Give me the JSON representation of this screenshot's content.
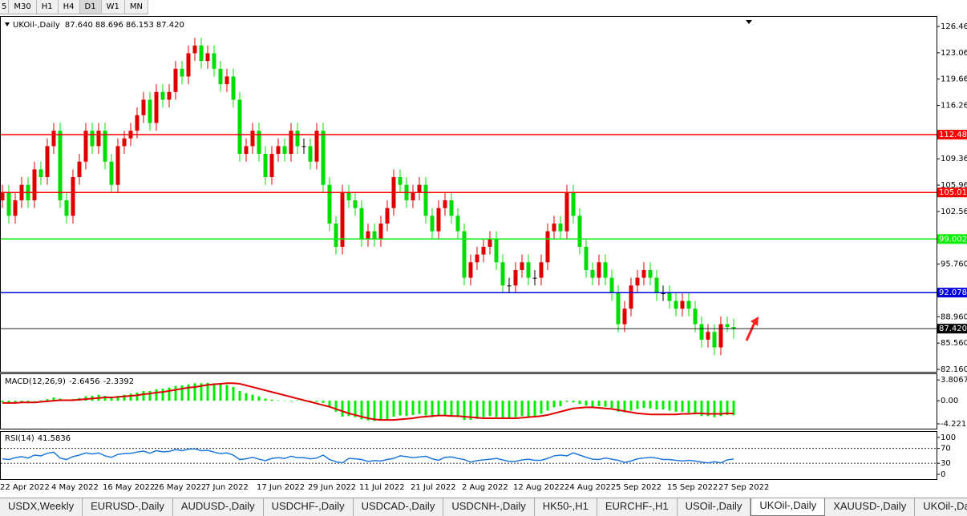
{
  "toolbar": [
    "5",
    "M30",
    "H1",
    "H4",
    "D1",
    "W1",
    "MN"
  ],
  "tabs": [
    "USDX,Weekly",
    "EURUSD-,Daily",
    "AUDUSD-,Daily",
    "USDCHF-,Daily",
    "USDCAD-,Daily",
    "USDCNH-,Daily",
    "HK50-,H1",
    "EURCHF-,H1",
    "USOil-,Daily",
    "UKOil-,Daily",
    "XAUUSD-,Daily",
    "UKOil-,Da"
  ],
  "active_tab": 9,
  "chart_data": [
    {
      "type": "candlestick",
      "title": "UKOil-,Daily",
      "ohlc_labels": [
        "87.640",
        "88.696",
        "86.153",
        "87.420"
      ],
      "categories": [
        "22 Apr 2022",
        null,
        null,
        null,
        null,
        null,
        null,
        null,
        "4 May 2022",
        null,
        null,
        null,
        null,
        null,
        null,
        null,
        "16 May 2022",
        null,
        null,
        null,
        null,
        null,
        null,
        null,
        "26 May 2022",
        null,
        null,
        null,
        null,
        null,
        null,
        null,
        "7 Jun 2022",
        null,
        null,
        null,
        null,
        null,
        null,
        null,
        "17 Jun 2022",
        null,
        null,
        null,
        null,
        null,
        null,
        null,
        "29 Jun 2022",
        null,
        null,
        null,
        null,
        null,
        null,
        null,
        "11 Jul 2022",
        null,
        null,
        null,
        null,
        null,
        null,
        null,
        "21 Jul 2022",
        null,
        null,
        null,
        null,
        null,
        null,
        null,
        "2 Aug 2022",
        null,
        null,
        null,
        null,
        null,
        null,
        null,
        "12 Aug 2022",
        null,
        null,
        null,
        null,
        null,
        null,
        null,
        "24 Aug 2022",
        null,
        null,
        null,
        null,
        null,
        null,
        null,
        "5 Sep 2022",
        null,
        null,
        null,
        null,
        null,
        null,
        null,
        "15 Sep 2022",
        null,
        null,
        null,
        null,
        null,
        null,
        null,
        "27 Sep 2022",
        null,
        null
      ],
      "open": [
        104,
        105,
        102,
        104,
        106,
        104,
        108,
        107,
        111,
        113,
        104,
        102,
        107,
        109,
        113,
        111,
        113,
        109,
        106,
        111,
        112,
        113,
        115,
        117,
        114,
        118,
        117,
        118,
        121,
        120,
        123,
        124,
        122,
        123,
        121,
        119,
        120,
        117,
        110,
        111,
        113,
        110,
        107,
        110,
        111,
        110,
        113,
        111,
        111,
        109,
        113,
        106,
        101,
        98,
        105,
        104,
        103,
        99,
        100,
        99,
        101,
        103,
        107,
        106,
        104,
        105,
        106,
        102,
        100,
        103,
        104,
        102,
        100,
        94,
        96,
        97,
        98,
        99,
        96,
        93,
        93,
        95,
        96,
        94,
        94,
        96,
        100,
        101,
        100,
        105,
        102,
        98,
        95,
        94,
        96,
        94,
        92,
        88,
        90,
        93,
        94,
        95,
        94,
        92,
        92,
        91,
        90,
        91,
        90,
        88,
        86,
        87,
        85,
        88,
        87.64
      ],
      "high": [
        106,
        106,
        105,
        107,
        107,
        109,
        109,
        112,
        114,
        114,
        105,
        108,
        110,
        114,
        114,
        114,
        114,
        110,
        112,
        113,
        114,
        116,
        118,
        118,
        119,
        119,
        119,
        122,
        122,
        124,
        125,
        125,
        124,
        124,
        122,
        121,
        121,
        118,
        112,
        114,
        114,
        111,
        111,
        112,
        112,
        114,
        114,
        112,
        112,
        114,
        114,
        107,
        102,
        106,
        106,
        105,
        104,
        101,
        101,
        102,
        104,
        108,
        108,
        107,
        106,
        107,
        107,
        103,
        104,
        105,
        105,
        103,
        101,
        97,
        98,
        99,
        100,
        100,
        97,
        94,
        96,
        97,
        97,
        95,
        97,
        101,
        102,
        102,
        106,
        106,
        103,
        99,
        96,
        97,
        97,
        95,
        93,
        91,
        94,
        95,
        96,
        96,
        95,
        93,
        93,
        92,
        92,
        92,
        91,
        89,
        88,
        88,
        89,
        89,
        88.696
      ],
      "low": [
        103,
        101,
        101,
        103,
        103,
        103,
        106,
        106,
        110,
        103,
        101,
        101,
        106,
        108,
        110,
        110,
        108,
        105,
        105,
        110,
        111,
        112,
        114,
        113,
        113,
        116,
        116,
        117,
        119,
        119,
        122,
        121,
        121,
        120,
        118,
        118,
        116,
        109,
        109,
        110,
        109,
        106,
        106,
        109,
        109,
        109,
        110,
        110,
        108,
        108,
        105,
        100,
        97,
        97,
        103,
        102,
        98,
        98,
        98,
        98,
        100,
        102,
        105,
        103,
        103,
        104,
        101,
        99,
        99,
        102,
        101,
        99,
        93,
        93,
        95,
        96,
        97,
        95,
        92,
        92,
        92,
        94,
        93,
        93,
        93,
        95,
        99,
        99,
        99,
        101,
        97,
        94,
        93,
        93,
        93,
        91,
        87,
        87,
        89,
        92,
        93,
        93,
        91,
        91,
        90,
        89,
        89,
        89,
        87,
        85,
        85,
        84,
        84,
        87,
        86.153
      ],
      "close": [
        105,
        102,
        104,
        106,
        104,
        108,
        107,
        111,
        113,
        104,
        102,
        107,
        109,
        113,
        111,
        113,
        109,
        106,
        111,
        112,
        113,
        115,
        117,
        114,
        118,
        117,
        118,
        121,
        120,
        123,
        124,
        122,
        123,
        121,
        119,
        120,
        117,
        110,
        111,
        113,
        110,
        107,
        110,
        111,
        110,
        113,
        111,
        111,
        109,
        113,
        106,
        101,
        98,
        105,
        104,
        103,
        99,
        100,
        99,
        101,
        103,
        107,
        106,
        104,
        105,
        106,
        102,
        100,
        103,
        104,
        102,
        100,
        94,
        96,
        97,
        98,
        99,
        96,
        93,
        93,
        95,
        96,
        94,
        94,
        96,
        100,
        101,
        100,
        105,
        102,
        98,
        95,
        94,
        96,
        94,
        92,
        88,
        90,
        93,
        94,
        95,
        94,
        92,
        92,
        91,
        90,
        91,
        90,
        88,
        86,
        87,
        85,
        88,
        87.64,
        87.42
      ],
      "up_color": "#e00000",
      "down_color": "#00dd00",
      "ylim": [
        81.85,
        127.81
      ],
      "yticks": [
        {
          "value": 126.46,
          "label": "126.460"
        },
        {
          "value": 123.06,
          "label": "123.060"
        },
        {
          "value": 119.66,
          "label": "119.660"
        },
        {
          "value": 116.26,
          "label": "116.260"
        },
        {
          "value": 109.36,
          "label": "109.360"
        },
        {
          "value": 105.96,
          "label": "105.960"
        },
        {
          "value": 102.56,
          "label": "102.560"
        },
        {
          "value": 95.76,
          "label": "95.760"
        },
        {
          "value": 88.96,
          "label": "88.960"
        },
        {
          "value": 85.56,
          "label": "85.560"
        },
        {
          "value": 82.16,
          "label": "82.160"
        }
      ],
      "levels": [
        {
          "value": 112.488,
          "color": "#ff0000"
        },
        {
          "value": 105.015,
          "color": "#ff0000"
        },
        {
          "value": 99.002,
          "color": "#00ee00"
        },
        {
          "value": 92.078,
          "color": "#0000dd"
        }
      ],
      "last_price": {
        "value": 87.42,
        "label": "87.420"
      }
    },
    {
      "type": "macd",
      "title": "MACD(12,26,9)",
      "histogram": [
        -0.3,
        -0.4,
        -0.3,
        -0.2,
        -0.2,
        0,
        0.1,
        0.3,
        0.6,
        0.4,
        0.2,
        0.3,
        0.5,
        0.8,
        0.9,
        1.1,
        0.9,
        0.7,
        0.9,
        1.1,
        1.3,
        1.5,
        1.8,
        1.8,
        2.1,
        2.2,
        2.4,
        2.7,
        2.8,
        3.0,
        3.2,
        3.2,
        3.3,
        3.2,
        3.0,
        2.9,
        2.5,
        1.8,
        1.4,
        1.1,
        0.8,
        0.4,
        0.2,
        0.1,
        0,
        -0.1,
        0.1,
        0,
        -0.3,
        -0.2,
        -0.4,
        -1.2,
        -2.0,
        -2.9,
        -2.8,
        -3.0,
        -3.4,
        -3.6,
        -3.7,
        -3.6,
        -3.4,
        -2.9,
        -2.7,
        -2.8,
        -2.6,
        -2.4,
        -2.7,
        -3.0,
        -2.8,
        -2.6,
        -2.8,
        -3.0,
        -3.5,
        -3.5,
        -3.3,
        -3.0,
        -2.8,
        -3.0,
        -3.3,
        -3.2,
        -3.0,
        -2.8,
        -2.9,
        -2.8,
        -2.4,
        -1.8,
        -1.2,
        -1.0,
        -0.2,
        -0.3,
        -0.6,
        -0.9,
        -1.2,
        -1.0,
        -1.1,
        -1.3,
        -2.0,
        -2.1,
        -1.8,
        -1.5,
        -1.3,
        -1.4,
        -1.6,
        -1.6,
        -1.8,
        -2.0,
        -2.0,
        -2.2,
        -2.5,
        -2.8,
        -2.8,
        -3.0,
        -2.8,
        -2.6,
        -2.6456
      ],
      "signal": [
        -0.4,
        -0.4,
        -0.4,
        -0.3,
        -0.3,
        -0.3,
        -0.2,
        -0.1,
        0,
        0.1,
        0.1,
        0.1,
        0.2,
        0.3,
        0.4,
        0.5,
        0.6,
        0.6,
        0.7,
        0.8,
        0.9,
        1.0,
        1.2,
        1.3,
        1.5,
        1.6,
        1.8,
        2.0,
        2.2,
        2.4,
        2.5,
        2.7,
        2.9,
        3.0,
        3.1,
        3.2,
        3.2,
        3.1,
        2.8,
        2.5,
        2.2,
        1.9,
        1.6,
        1.3,
        1.0,
        0.7,
        0.4,
        0.1,
        -0.2,
        -0.5,
        -0.8,
        -1.1,
        -1.5,
        -1.9,
        -2.3,
        -2.6,
        -2.9,
        -3.2,
        -3.4,
        -3.5,
        -3.5,
        -3.5,
        -3.4,
        -3.3,
        -3.2,
        -3.0,
        -2.9,
        -2.8,
        -2.7,
        -2.7,
        -2.8,
        -2.8,
        -2.9,
        -3.0,
        -3.1,
        -3.2,
        -3.2,
        -3.2,
        -3.2,
        -3.2,
        -3.2,
        -3.1,
        -3.0,
        -2.9,
        -2.8,
        -2.6,
        -2.3,
        -2.0,
        -1.7,
        -1.4,
        -1.3,
        -1.2,
        -1.2,
        -1.3,
        -1.4,
        -1.5,
        -1.7,
        -1.9,
        -2.1,
        -2.3,
        -2.4,
        -2.5,
        -2.5,
        -2.5,
        -2.5,
        -2.5,
        -2.4,
        -2.4,
        -2.3,
        -2.3,
        -2.4,
        -2.4,
        -2.4,
        -2.3,
        -2.3392
      ],
      "histogram_color": "#00ee00",
      "signal_color": "#e00000",
      "ylim": [
        -5.1,
        5.0
      ],
      "yticks": [
        3.8067,
        {
          "value": 0,
          "label": "0.00"
        },
        -4.221
      ]
    },
    {
      "type": "line",
      "title": "RSI(14)",
      "values": [
        42,
        40,
        45,
        48,
        44,
        52,
        50,
        57,
        60,
        44,
        40,
        48,
        52,
        58,
        55,
        58,
        50,
        46,
        54,
        56,
        57,
        60,
        63,
        57,
        64,
        61,
        62,
        67,
        64,
        68,
        69,
        64,
        65,
        60,
        56,
        58,
        52,
        40,
        42,
        46,
        41,
        37,
        43,
        45,
        43,
        49,
        45,
        45,
        42,
        44,
        52,
        40,
        34,
        31,
        43,
        42,
        40,
        35,
        37,
        36,
        40,
        43,
        50,
        48,
        45,
        47,
        49,
        42,
        38,
        46,
        47,
        43,
        40,
        33,
        37,
        39,
        41,
        43,
        39,
        35,
        35,
        39,
        41,
        38,
        38,
        43,
        50,
        52,
        50,
        58,
        52,
        46,
        41,
        40,
        44,
        41,
        38,
        32,
        36,
        42,
        44,
        46,
        44,
        40,
        40,
        38,
        36,
        38,
        36,
        33,
        31,
        34,
        31,
        39,
        41.5836
      ],
      "color": "#1e78dc",
      "level_lines": [
        70,
        30
      ],
      "ylim": [
        -13,
        117
      ],
      "yticks": [
        100,
        70,
        30,
        0
      ]
    }
  ]
}
